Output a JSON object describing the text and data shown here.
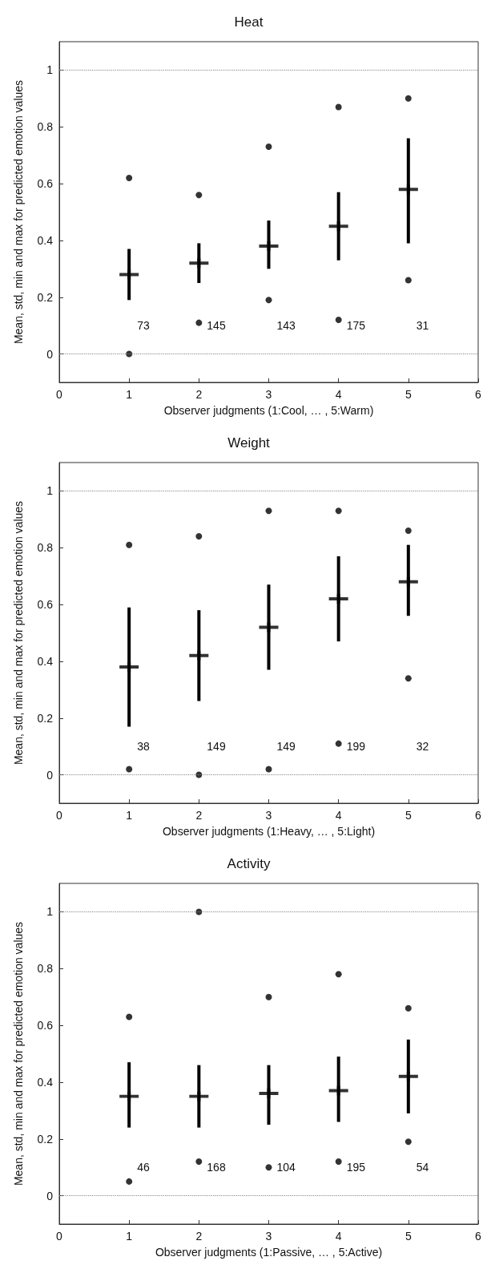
{
  "chart_data": [
    {
      "type": "scatter",
      "title": "Heat",
      "xlabel": "Observer judgments (1:Cool, … , 5:Warm)",
      "ylabel": "Mean, std, min and max for predicted emotion values",
      "x": [
        1,
        2,
        3,
        4,
        5
      ],
      "xlim": [
        0,
        6
      ],
      "xticks": [
        0,
        1,
        2,
        3,
        4,
        5,
        6
      ],
      "ylim": [
        -0.1,
        1.1
      ],
      "yticks": [
        0,
        0.2,
        0.4,
        0.6,
        0.8,
        1
      ],
      "series": [
        {
          "color": "#000000",
          "marker": "cross",
          "values": [
            0.28,
            0.32,
            0.38,
            0.45,
            0.58
          ],
          "errors": [
            [
              0.19,
              0.37
            ],
            [
              0.25,
              0.39
            ],
            [
              0.3,
              0.47
            ],
            [
              0.33,
              0.57
            ],
            [
              0.39,
              0.76
            ]
          ]
        },
        {
          "color": "#000000",
          "marker": "circle",
          "values": [
            0.62,
            0.56,
            0.73,
            0.87,
            0.9
          ]
        },
        {
          "color": "#000000",
          "marker": "circle",
          "values": [
            0.0,
            0.11,
            0.19,
            0.12,
            0.26
          ]
        }
      ],
      "ref_lines": [
        {
          "axis": "y",
          "value": 0,
          "color": "#888888",
          "line_style": "dotted"
        },
        {
          "axis": "y",
          "value": 1,
          "color": "#888888",
          "line_style": "dotted"
        }
      ],
      "annotations": [
        "73",
        "145",
        "143",
        "175",
        "31"
      ]
    },
    {
      "type": "scatter",
      "title": "Weight",
      "xlabel": "Observer judgments (1:Heavy, … , 5:Light)",
      "ylabel": "Mean, std, min and max for predicted emotion values",
      "x": [
        1,
        2,
        3,
        4,
        5
      ],
      "xlim": [
        0,
        6
      ],
      "xticks": [
        0,
        1,
        2,
        3,
        4,
        5,
        6
      ],
      "ylim": [
        -0.1,
        1.1
      ],
      "yticks": [
        0,
        0.2,
        0.4,
        0.6,
        0.8,
        1
      ],
      "series": [
        {
          "color": "#000000",
          "marker": "cross",
          "values": [
            0.38,
            0.42,
            0.52,
            0.62,
            0.68
          ],
          "errors": [
            [
              0.17,
              0.59
            ],
            [
              0.26,
              0.58
            ],
            [
              0.37,
              0.67
            ],
            [
              0.47,
              0.77
            ],
            [
              0.56,
              0.81
            ]
          ]
        },
        {
          "color": "#000000",
          "marker": "circle",
          "values": [
            0.81,
            0.84,
            0.93,
            0.93,
            0.86
          ]
        },
        {
          "color": "#000000",
          "marker": "circle",
          "values": [
            0.02,
            0.0,
            0.02,
            0.11,
            0.34
          ]
        }
      ],
      "ref_lines": [
        {
          "axis": "y",
          "value": 0,
          "color": "#888888",
          "line_style": "dotted"
        },
        {
          "axis": "y",
          "value": 1,
          "color": "#888888",
          "line_style": "dotted"
        }
      ],
      "annotations": [
        "38",
        "149",
        "149",
        "199",
        "32"
      ]
    },
    {
      "type": "scatter",
      "title": "Activity",
      "xlabel": "Observer judgments (1:Passive, … , 5:Active)",
      "ylabel": "Mean, std, min and max for predicted emotion values",
      "x": [
        1,
        2,
        3,
        4,
        5
      ],
      "xlim": [
        0,
        6
      ],
      "xticks": [
        0,
        1,
        2,
        3,
        4,
        5,
        6
      ],
      "ylim": [
        -0.1,
        1.1
      ],
      "yticks": [
        0,
        0.2,
        0.4,
        0.6,
        0.8,
        1
      ],
      "series": [
        {
          "color": "#000000",
          "marker": "cross",
          "values": [
            0.35,
            0.35,
            0.36,
            0.37,
            0.42
          ],
          "errors": [
            [
              0.24,
              0.47
            ],
            [
              0.24,
              0.46
            ],
            [
              0.25,
              0.46
            ],
            [
              0.26,
              0.49
            ],
            [
              0.29,
              0.55
            ]
          ]
        },
        {
          "color": "#000000",
          "marker": "circle",
          "values": [
            0.63,
            1.0,
            0.7,
            0.78,
            0.66
          ]
        },
        {
          "color": "#000000",
          "marker": "circle",
          "values": [
            0.05,
            0.12,
            0.1,
            0.12,
            0.19
          ]
        }
      ],
      "ref_lines": [
        {
          "axis": "y",
          "value": 0,
          "color": "#888888",
          "line_style": "dotted"
        },
        {
          "axis": "y",
          "value": 1,
          "color": "#888888",
          "line_style": "dotted"
        }
      ],
      "annotations": [
        "46",
        "168",
        "104",
        "195",
        "54"
      ]
    }
  ]
}
